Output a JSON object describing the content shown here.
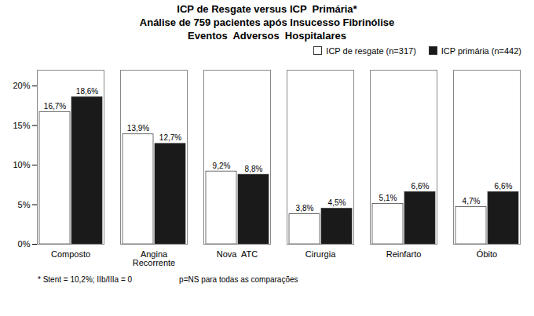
{
  "chart_data": {
    "type": "bar",
    "title": "ICP de Resgate versus ICP  Primária*\nAnálise de 759 pacientes após Insucesso Fibrinólise\nEventos  Adversos  Hospitalares",
    "categories": [
      "Composto",
      "Angina\nRecorrente",
      "Nova  ATC",
      "Cirurgia",
      "Reinfarto",
      "Óbito"
    ],
    "series": [
      {
        "name": "ICP de resgate (n=317)",
        "color": "#ffffff",
        "values": [
          16.7,
          13.9,
          9.2,
          3.8,
          5.1,
          4.7
        ],
        "value_labels": [
          "16,7%",
          "13,9%",
          "9,2%",
          "3,8%",
          "5,1%",
          "4,7%"
        ]
      },
      {
        "name": "ICP primária (n=442)",
        "color": "#1a1a1a",
        "values": [
          18.6,
          12.7,
          8.8,
          4.5,
          6.6,
          6.6
        ],
        "value_labels": [
          "18,6%",
          "12,7%",
          "8,8%",
          "4,5%",
          "6,6%",
          "6,6%"
        ]
      }
    ],
    "ylim": [
      0,
      22
    ],
    "yticks": [
      {
        "value": 0,
        "label": "0%"
      },
      {
        "value": 5,
        "label": "5%"
      },
      {
        "value": 10,
        "label": "10%"
      },
      {
        "value": 15,
        "label": "15%"
      },
      {
        "value": 20,
        "label": "20%"
      }
    ],
    "data_labels": true,
    "grid": false,
    "legend": "upper right",
    "annotations": [
      "* Stent = 10,2%; IIb/IIIa = 0",
      "p=NS para todas as comparações"
    ]
  }
}
